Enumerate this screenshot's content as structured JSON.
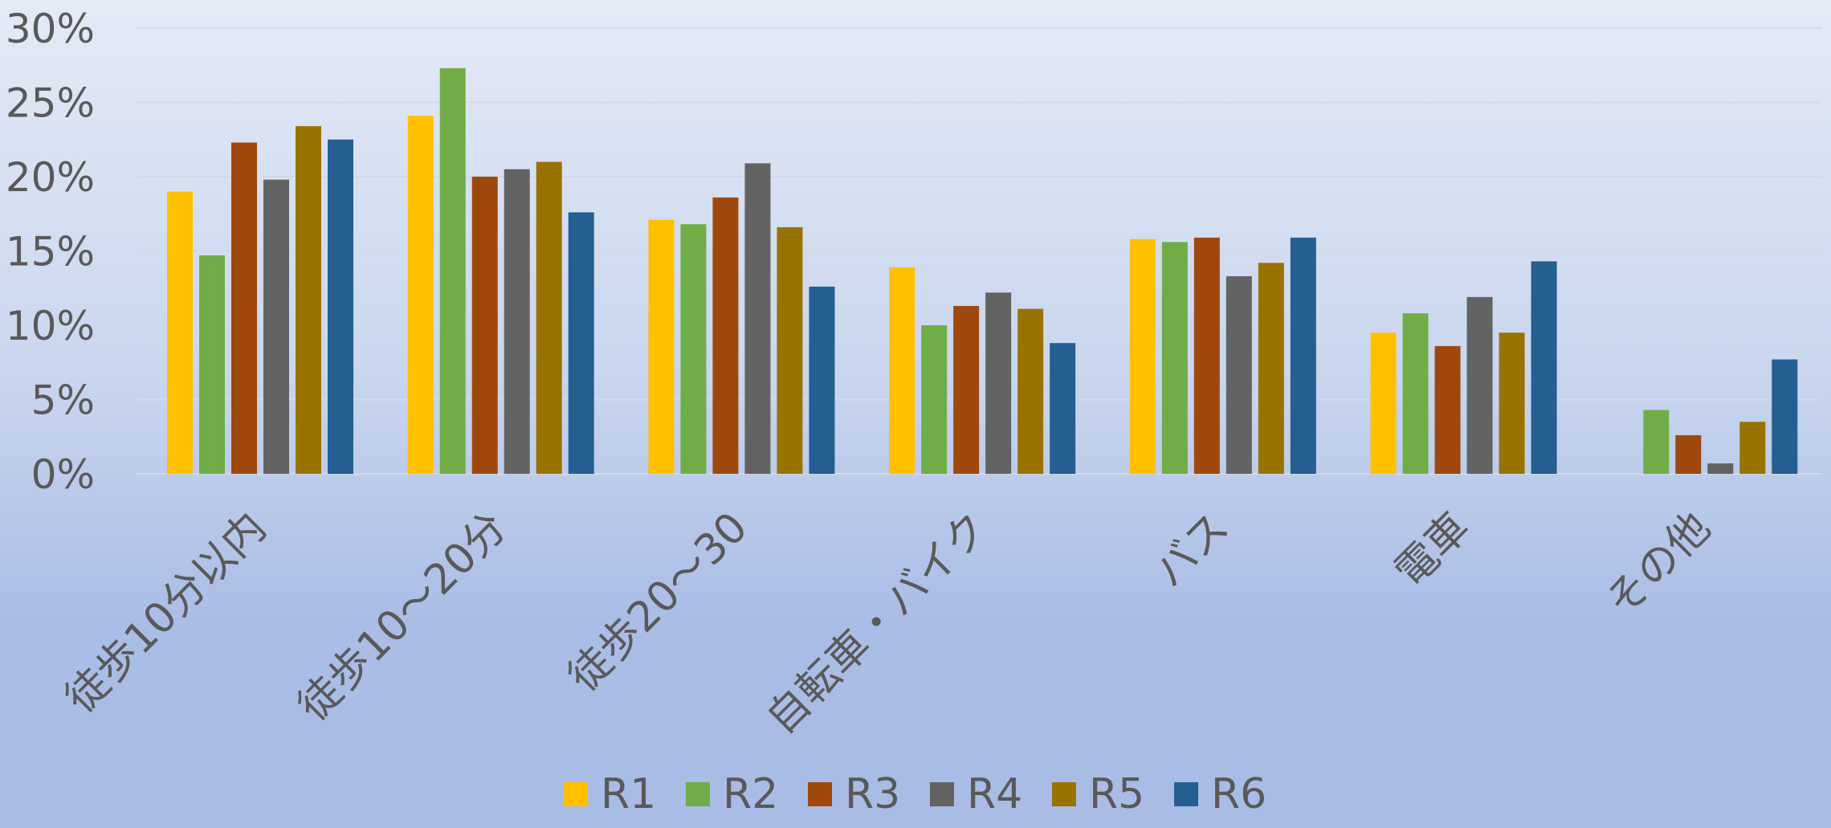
{
  "chart_data": {
    "type": "bar",
    "title": "",
    "xlabel": "",
    "ylabel": "",
    "ylim": [
      0,
      30
    ],
    "yticks": [
      "0%",
      "5%",
      "10%",
      "15%",
      "20%",
      "25%",
      "30%"
    ],
    "categories": [
      "徒歩10分以内",
      "徒歩10～20分",
      "徒歩20～30",
      "自転車・バイク",
      "バス",
      "電車",
      "その他"
    ],
    "series": [
      {
        "name": "R1",
        "color": "#ffc000",
        "values": [
          19.0,
          24.1,
          17.1,
          13.9,
          15.8,
          9.5,
          0
        ]
      },
      {
        "name": "R2",
        "color": "#70ad47",
        "values": [
          14.7,
          27.3,
          16.8,
          10.0,
          15.6,
          10.8,
          4.3
        ]
      },
      {
        "name": "R3",
        "color": "#9e480e",
        "values": [
          22.3,
          20.0,
          18.6,
          11.3,
          15.9,
          8.6,
          2.6
        ]
      },
      {
        "name": "R4",
        "color": "#636363",
        "values": [
          19.8,
          20.5,
          20.9,
          12.2,
          13.3,
          11.9,
          0.7
        ]
      },
      {
        "name": "R5",
        "color": "#997300",
        "values": [
          23.4,
          21.0,
          16.6,
          11.1,
          14.2,
          9.5,
          3.5
        ]
      },
      {
        "name": "R6",
        "color": "#255e91",
        "values": [
          22.5,
          17.6,
          12.6,
          8.8,
          15.9,
          14.3,
          7.7
        ]
      }
    ],
    "grid": true,
    "legend": "bottom"
  }
}
